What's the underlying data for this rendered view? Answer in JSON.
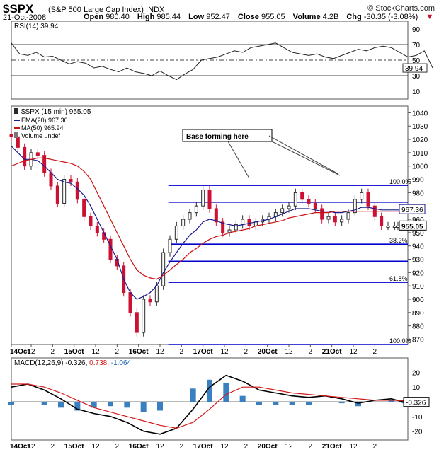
{
  "header": {
    "symbol": "$SPX",
    "name": "(S&P 500 Large Cap Index)",
    "exchange": "INDX",
    "brand": "© StockCharts.com",
    "date": "21-Oct-2008",
    "open_label": "Open",
    "open": "980.40",
    "high_label": "High",
    "high": "985.44",
    "low_label": "Low",
    "low": "952.47",
    "close_label": "Close",
    "close": "955.05",
    "volume_label": "Volume",
    "volume": "4.2B",
    "chg_label": "Chg",
    "chg": "-30.35 (-3.08%)",
    "chg_marker": "▼"
  },
  "colors": {
    "up": "#2a2a2a",
    "down": "#cc1133",
    "ema": "#1a1a8c",
    "ma": "#cc1111",
    "fib": "#0000cc",
    "macd_hist": "#3a7fc0"
  },
  "chart_data": [
    {
      "type": "line",
      "title": "RSI(14) 39.94",
      "ylim": [
        0,
        100
      ],
      "yticks": [
        10,
        30,
        50,
        70,
        90
      ],
      "reference_lines": [
        30,
        50,
        70
      ],
      "current_value": "39.94",
      "x": [
        0,
        5,
        10,
        15,
        20,
        25,
        30,
        35,
        40,
        45,
        50,
        55,
        60,
        65,
        70,
        75,
        80,
        85,
        90,
        95,
        100,
        105,
        110,
        115,
        120,
        125,
        130,
        135,
        140,
        145,
        150,
        155,
        160,
        165,
        170,
        175,
        180,
        185,
        190,
        195,
        200,
        205,
        210,
        215,
        220,
        225,
        230,
        235,
        240,
        245,
        250,
        255
      ],
      "series": [
        {
          "values": [
            72,
            58,
            56,
            60,
            54,
            55,
            50,
            45,
            48,
            46,
            40,
            42,
            38,
            35,
            40,
            35,
            33,
            30,
            36,
            30,
            25,
            32,
            38,
            50,
            52,
            54,
            58,
            62,
            60,
            66,
            68,
            70,
            72,
            66,
            60,
            58,
            56,
            58,
            54,
            52,
            56,
            60,
            64,
            62,
            66,
            68,
            66,
            60,
            54,
            56,
            62,
            40
          ]
        }
      ]
    },
    {
      "type": "candlestick",
      "title": "$SPX (15 min) 955.05",
      "legend": [
        "$SPX (15 min) 955.05",
        "EMA(20) 967.36",
        "MA(50) 965.94",
        "Volume undef"
      ],
      "ylim": [
        866,
        1045
      ],
      "yticks": [
        870,
        880,
        890,
        900,
        910,
        920,
        930,
        940,
        950,
        960,
        970,
        980,
        990,
        1000,
        1010,
        1020,
        1030,
        1040
      ],
      "x_labels": [
        "14Oct",
        "12",
        "2",
        "15Oct",
        "12",
        "2",
        "16Oct",
        "12",
        "2",
        "17Oct",
        "12",
        "2",
        "20Oct",
        "12",
        "2",
        "21Oct",
        "12",
        "2"
      ],
      "x_label_pos": [
        0,
        12,
        25,
        38,
        51,
        64,
        77,
        90,
        103,
        116,
        129,
        142,
        155,
        168,
        181,
        194,
        207,
        220
      ],
      "current_price": "955.05",
      "ema_label": "967.36",
      "ma_label": "965.94",
      "annotation": "Base forming here",
      "fib_levels": [
        {
          "price": 985.44,
          "label": "100.0%"
        },
        {
          "price": 972.86,
          "label": ""
        },
        {
          "price": 941.3,
          "label": "38.2%"
        },
        {
          "price": 928.5,
          "label": ""
        },
        {
          "price": 912.7,
          "label": "61.8%"
        },
        {
          "price": 866.0,
          "label": "100.0%"
        }
      ],
      "x": [
        0,
        4,
        8,
        12,
        16,
        20,
        24,
        28,
        32,
        36,
        40,
        44,
        48,
        52,
        56,
        60,
        64,
        68,
        72,
        76,
        80,
        84,
        88,
        92,
        96,
        100,
        104,
        108,
        112,
        116,
        120,
        124,
        128,
        132,
        136,
        140,
        144,
        148,
        152,
        156,
        160,
        164,
        168,
        172,
        176,
        180,
        184,
        188,
        192,
        196,
        200,
        204,
        208,
        212,
        216,
        220,
        224,
        228,
        232,
        234,
        238
      ],
      "close": [
        1022,
        1014,
        1000,
        1010,
        1008,
        995,
        985,
        972,
        990,
        988,
        975,
        962,
        955,
        950,
        945,
        930,
        925,
        905,
        890,
        875,
        900,
        898,
        910,
        935,
        945,
        955,
        960,
        965,
        970,
        982,
        968,
        958,
        950,
        952,
        956,
        960,
        955,
        958,
        960,
        962,
        965,
        968,
        970,
        980,
        975,
        972,
        968,
        960,
        962,
        958,
        960,
        965,
        975,
        980,
        970,
        962,
        955,
        955,
        955,
        955,
        955
      ],
      "ema": [
        1015,
        1010,
        1005,
        1005,
        1004,
        1000,
        995,
        990,
        988,
        987,
        983,
        978,
        970,
        960,
        950,
        940,
        930,
        915,
        905,
        900,
        902,
        905,
        910,
        920,
        928,
        935,
        942,
        948,
        952,
        958,
        960,
        959,
        957,
        956,
        955,
        956,
        957,
        958,
        959,
        960,
        962,
        964,
        966,
        968,
        968,
        968,
        967,
        966,
        966,
        965,
        965,
        966,
        967,
        969,
        969,
        968,
        967,
        967,
        967,
        967,
        967
      ],
      "ma": [
        1000,
        1002,
        1004,
        1005,
        1006,
        1006,
        1005,
        1004,
        1003,
        1002,
        1000,
        996,
        990,
        980,
        970,
        960,
        950,
        940,
        930,
        922,
        918,
        916,
        915,
        918,
        922,
        926,
        930,
        935,
        938,
        942,
        945,
        947,
        948,
        950,
        951,
        952,
        953,
        955,
        956,
        957,
        958,
        959,
        961,
        962,
        963,
        964,
        965,
        965,
        965,
        966,
        966,
        966,
        966,
        966,
        966,
        966,
        966,
        966,
        966,
        966,
        966
      ]
    },
    {
      "type": "line",
      "title": "MACD(12,26,9) -0.326, 0.738, -1.064",
      "title_parts": {
        "name": "MACD(12,26,9)",
        "macd": "-0.326",
        "signal": "0.738",
        "hist": "-1.064"
      },
      "ylim": [
        -25,
        25
      ],
      "yticks": [
        -20,
        -10,
        0,
        10,
        20
      ],
      "current_value": "-0.326",
      "x_labels": [
        "14Oct",
        "12",
        "2",
        "15Oct",
        "12",
        "2",
        "16Oct",
        "12",
        "2",
        "17Oct",
        "12",
        "2",
        "20Oct",
        "12",
        "2",
        "21Oct",
        "12",
        "2"
      ],
      "x_label_pos": [
        0,
        12,
        25,
        38,
        51,
        64,
        77,
        90,
        103,
        116,
        129,
        142,
        155,
        168,
        181,
        194,
        207,
        220
      ],
      "x": [
        0,
        10,
        20,
        30,
        40,
        50,
        60,
        70,
        80,
        90,
        100,
        110,
        120,
        130,
        140,
        150,
        160,
        170,
        180,
        190,
        200,
        210,
        220,
        230,
        238
      ],
      "series": [
        {
          "name": "MACD",
          "values": [
            10,
            12,
            8,
            2,
            -5,
            -8,
            -10,
            -14,
            -20,
            -22,
            -18,
            -5,
            10,
            18,
            14,
            8,
            6,
            4,
            3,
            4,
            2,
            -1,
            1,
            2,
            -0.3
          ]
        },
        {
          "name": "Signal",
          "values": [
            12,
            12,
            10,
            6,
            1,
            -4,
            -7,
            -10,
            -13,
            -16,
            -18,
            -14,
            -5,
            5,
            10,
            10,
            8,
            6,
            5,
            4,
            3,
            2,
            1,
            1,
            0.7
          ]
        },
        {
          "name": "Histogram",
          "values": [
            -2,
            0,
            -2,
            -4,
            -6,
            -4,
            -3,
            -4,
            -7,
            -6,
            0,
            9,
            15,
            13,
            4,
            -2,
            -2,
            -2,
            -2,
            0,
            -1,
            -3,
            0,
            1,
            -1
          ]
        }
      ]
    }
  ]
}
